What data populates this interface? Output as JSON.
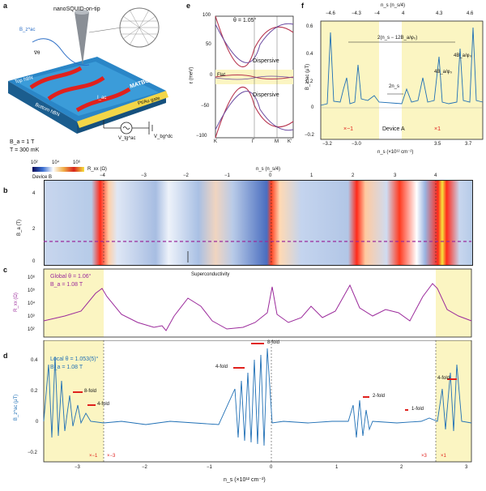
{
  "panels": {
    "a": {
      "label": "a",
      "tip": "nanoSQUID-on-tip",
      "top_layer": "Top hBN",
      "bottom_layer": "Bottom hBN",
      "material": "MATBG",
      "gate": "Pt/Au gate",
      "B_field": "B_z^ac",
      "grad": "∇θ",
      "current": "I_ac",
      "vac": "V_tg^ac",
      "vdc": "V_bg^dc",
      "params": [
        "B_a = 1 T",
        "T = 300 mK"
      ]
    },
    "e": {
      "label": "e",
      "theta": "θ = 1.05°",
      "flat": "Flat",
      "disp_top": "Dispersive",
      "disp_bottom": "Dispersive",
      "ylabel": "ε (meV)",
      "yticks": [
        "100",
        "50",
        "0",
        "−50",
        "−100"
      ],
      "xticks": [
        "K",
        "Γ",
        "M",
        "K′"
      ]
    },
    "f": {
      "label": "f",
      "top_ticks_left": [
        "−4.6",
        "−4.3",
        "−4"
      ],
      "top_ticks_right": [
        "4",
        "4.3",
        "4.6"
      ],
      "top_axis": "n_s (n_s/4)",
      "bot_ticks": [
        "−3.2",
        "−3.0",
        "3.5",
        "3.7"
      ],
      "bot_axis": "n_s (×10¹² cm⁻²)",
      "yticks": [
        "0.6",
        "0.4",
        "0.2",
        "0",
        "−0.2"
      ],
      "ylabel": "B_z^ac (μT)",
      "ann_period": "2(n_s − 12B_a/φ₀)",
      "ann_4b1": "4B_a/φ₀",
      "ann_4b2": "4B_a/φ₀",
      "ann_2n": "2n_s",
      "device": "Device A",
      "x1_left": "×−1",
      "x1_right": "×1"
    },
    "cb": {
      "label": "Device B",
      "ticks": [
        "10²",
        "10⁴",
        "10⁶"
      ],
      "name": "R_xx (Ω)"
    },
    "b": {
      "label": "b",
      "top_axis": "n_s (n_s/4)",
      "top_ticks": [
        "−4",
        "−3",
        "−2",
        "−1",
        "0",
        "1",
        "2",
        "3",
        "4"
      ],
      "yticks": [
        "4",
        "2",
        "0"
      ],
      "ylabel": "B_a (T)",
      "sc": "Superconductivity"
    },
    "c": {
      "label": "c",
      "global": "Global θ = 1.06°",
      "field": "B_a = 1.08 T",
      "yticks": [
        "10⁶",
        "10⁵",
        "10⁴",
        "10³",
        "10²"
      ],
      "ylabel": "R_xx (Ω)"
    },
    "d": {
      "label": "d",
      "local": "Local θ = 1.053(5)°",
      "field": "B_a = 1.08 T",
      "yticks": [
        "0.4",
        "0.2",
        "0",
        "−0.2"
      ],
      "ylabel": "B_z^ac (μT)",
      "xticks": [
        "−3",
        "−2",
        "−1",
        "0",
        "1",
        "2",
        "3"
      ],
      "xlabel": "n_s (×10¹² cm⁻²)",
      "fold8a": "8-fold",
      "fold4a": "4-fold",
      "fold8b": "8-fold",
      "fold4b": "4-fold",
      "fold2": "2-fold",
      "fold1": "1-fold",
      "fold4c": "4-fold",
      "m1": "×−1",
      "m3": "×−3",
      "p3": "×3",
      "p1": "×1"
    }
  },
  "colors": {
    "purple": "#9b2a9b",
    "blue": "#1f6fb5",
    "yellow": "#fbf5c2",
    "red": "#e0211d"
  }
}
